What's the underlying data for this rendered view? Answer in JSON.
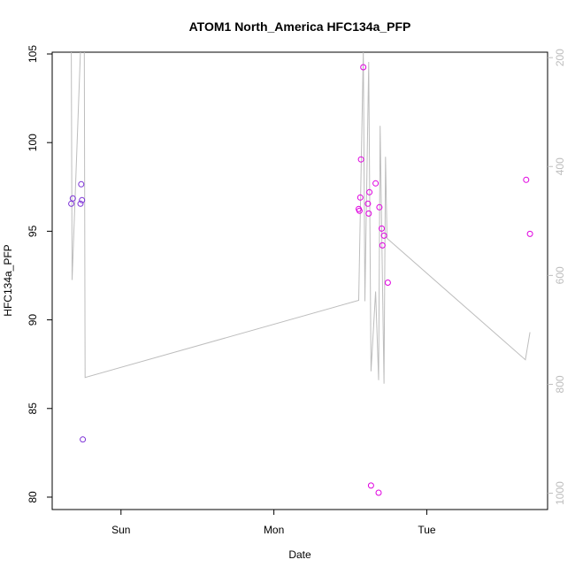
{
  "chart_data": {
    "type": "scatter",
    "title": "ATOM1 North_America HFC134a_PFP",
    "xlabel": "Date",
    "ylabel": "HFC134a_PFP",
    "x_ticks": [
      "Sun",
      "Mon",
      "Tue"
    ],
    "x_tick_positions": [
      1,
      2,
      3
    ],
    "xlim": [
      0.55,
      3.79
    ],
    "y_ticks": [
      80,
      85,
      90,
      95,
      100,
      105
    ],
    "ylim": [
      79.3,
      105.1
    ],
    "y2_ticks": [
      200,
      400,
      600,
      800,
      1000
    ],
    "y2lim": [
      1030,
      190
    ],
    "y2_reversed": true,
    "grid": false,
    "legend": "none",
    "point_color_low": "#7b2fd6",
    "point_color_high": "#e000e0",
    "line_color": "#bdbdbd",
    "points": [
      {
        "x": 0.675,
        "y": 96.55
      },
      {
        "x": 0.685,
        "y": 96.85
      },
      {
        "x": 0.735,
        "y": 96.55
      },
      {
        "x": 0.74,
        "y": 97.65
      },
      {
        "x": 0.745,
        "y": 96.75
      },
      {
        "x": 0.75,
        "y": 83.25
      },
      {
        "x": 2.555,
        "y": 96.25
      },
      {
        "x": 2.56,
        "y": 96.15
      },
      {
        "x": 2.565,
        "y": 96.9
      },
      {
        "x": 2.57,
        "y": 99.05
      },
      {
        "x": 2.585,
        "y": 104.25
      },
      {
        "x": 2.615,
        "y": 96.55
      },
      {
        "x": 2.62,
        "y": 96.0
      },
      {
        "x": 2.625,
        "y": 97.2
      },
      {
        "x": 2.635,
        "y": 80.65
      },
      {
        "x": 2.665,
        "y": 97.7
      },
      {
        "x": 2.685,
        "y": 80.25
      },
      {
        "x": 2.69,
        "y": 96.35
      },
      {
        "x": 2.705,
        "y": 95.15
      },
      {
        "x": 2.71,
        "y": 94.2
      },
      {
        "x": 2.72,
        "y": 94.75
      },
      {
        "x": 2.745,
        "y": 92.1
      },
      {
        "x": 3.65,
        "y": 97.9
      },
      {
        "x": 3.675,
        "y": 94.85
      }
    ],
    "line": [
      {
        "x": 0.675,
        "y": 105.2
      },
      {
        "x": 0.68,
        "y": 92.25
      },
      {
        "x": 0.735,
        "y": 105.2
      },
      {
        "x": 0.76,
        "y": 105.2
      },
      {
        "x": 0.765,
        "y": 86.75
      },
      {
        "x": 2.555,
        "y": 91.1
      },
      {
        "x": 2.585,
        "y": 105.2
      },
      {
        "x": 2.595,
        "y": 91.05
      },
      {
        "x": 2.62,
        "y": 104.55
      },
      {
        "x": 2.635,
        "y": 87.1
      },
      {
        "x": 2.665,
        "y": 91.6
      },
      {
        "x": 2.685,
        "y": 86.6
      },
      {
        "x": 2.695,
        "y": 100.95
      },
      {
        "x": 2.72,
        "y": 86.4
      },
      {
        "x": 2.73,
        "y": 99.2
      },
      {
        "x": 2.74,
        "y": 94.6
      },
      {
        "x": 3.645,
        "y": 87.75
      },
      {
        "x": 3.675,
        "y": 89.3
      }
    ]
  }
}
